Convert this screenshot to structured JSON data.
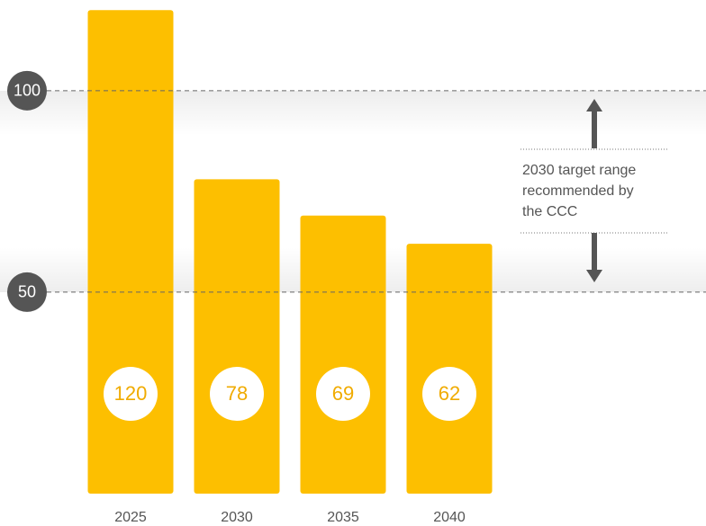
{
  "chart_data": {
    "type": "bar",
    "categories": [
      "2025",
      "2030",
      "2035",
      "2040"
    ],
    "values": [
      120,
      78,
      69,
      62
    ],
    "color": "#fdbf00",
    "ylim": [
      0,
      122.5
    ],
    "yticks": [
      50,
      100
    ],
    "grid": true,
    "annotation": [
      "2030 target range",
      "recommended by",
      "the CCC"
    ]
  }
}
